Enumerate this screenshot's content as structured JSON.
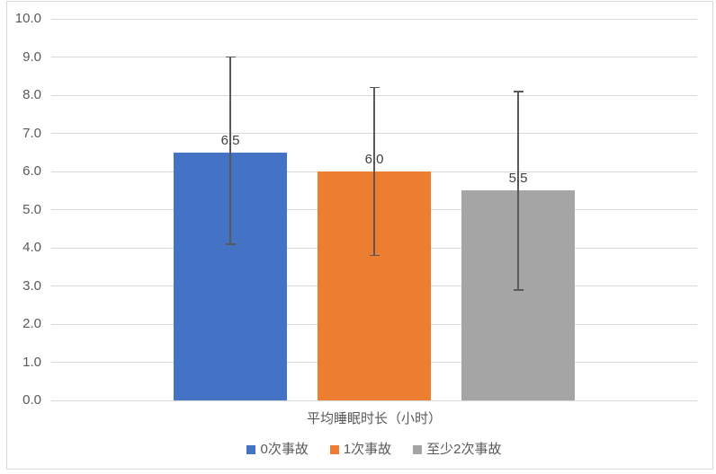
{
  "chart_data": {
    "type": "bar",
    "title": "",
    "xlabel": "平均睡眠时长（小时）",
    "ylabel": "",
    "ylim": [
      0,
      10
    ],
    "ytick_step": 1.0,
    "yticks": [
      "0.0",
      "1.0",
      "2.0",
      "3.0",
      "4.0",
      "5.0",
      "6.0",
      "7.0",
      "8.0",
      "9.0",
      "10.0"
    ],
    "grid": true,
    "legend_position": "bottom",
    "categories": [
      "平均睡眠时长（小时）"
    ],
    "series": [
      {
        "name": "0次事故",
        "value": 6.5,
        "data_label": "6.5",
        "color": "#4472C4",
        "error_low": 4.1,
        "error_high": 9.0
      },
      {
        "name": "1次事故",
        "value": 6.0,
        "data_label": "6.0",
        "color": "#ED7D31",
        "error_low": 3.8,
        "error_high": 8.2
      },
      {
        "name": "至少2次事故",
        "value": 5.5,
        "data_label": "5.5",
        "color": "#A5A5A5",
        "error_low": 2.9,
        "error_high": 8.1
      }
    ],
    "colors": {
      "background": "#FFFFFF",
      "gridline": "#D9D9D9",
      "border": "#D9D9D9",
      "axis_text": "#595959",
      "data_label_text": "#404040",
      "error_bar": "#595959"
    }
  }
}
